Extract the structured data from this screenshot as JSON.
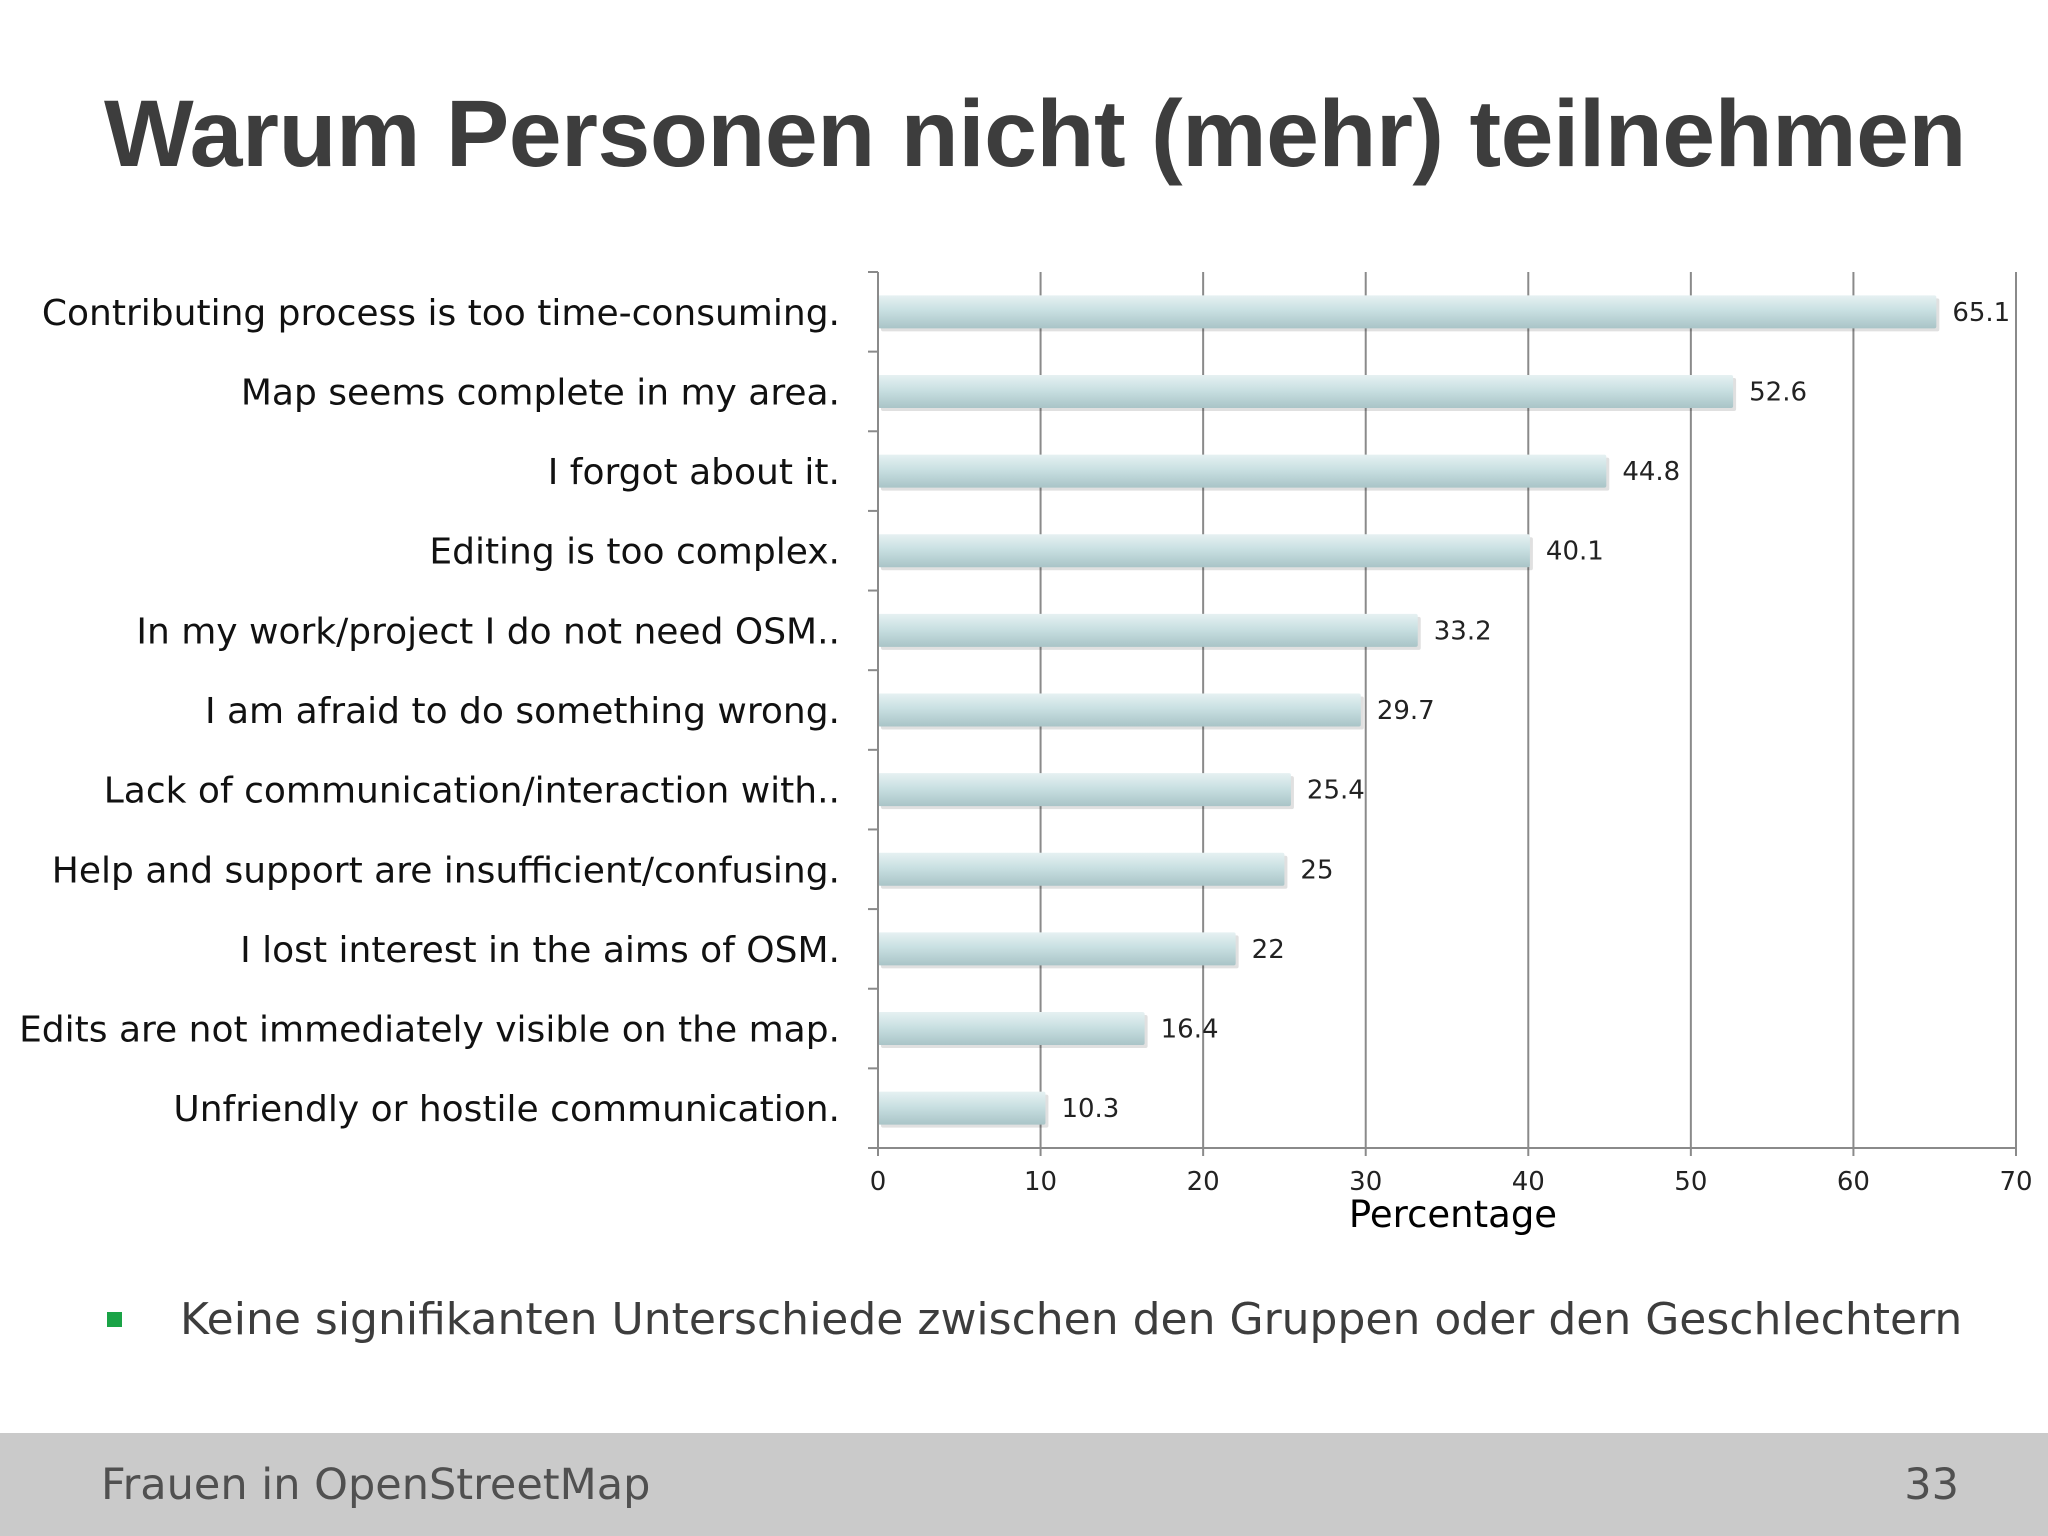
{
  "slide": {
    "title": "Warum Personen nicht (mehr) teilnehmen",
    "bullet": "Keine signifikanten Unterschiede zwischen den Gruppen oder den Geschlechtern",
    "bullet_color": "#1aa346"
  },
  "footer": {
    "title": "Frauen in OpenStreetMap",
    "page_number": "33",
    "background": "#cacaca"
  },
  "chart_data": {
    "type": "bar",
    "orientation": "horizontal",
    "categories": [
      "Contributing process is too time-consuming.",
      "Map seems complete in my area.",
      "I forgot about it.",
      "Editing is too complex.",
      "In my work/project I do not need OSM..",
      "I am afraid to do something wrong.",
      "Lack of communication/interaction with..",
      "Help and support are insufficient/confusing.",
      "I lost interest in the aims of OSM.",
      "Edits are not immediately visible on the map.",
      "Unfriendly or hostile communication."
    ],
    "values": [
      65.1,
      52.6,
      44.8,
      40.1,
      33.2,
      29.7,
      25.4,
      25,
      22,
      16.4,
      10.3
    ],
    "data_labels": [
      "65.1",
      "52.6",
      "44.8",
      "40.1",
      "33.2",
      "29.7",
      "25.4",
      "25",
      "22",
      "16.4",
      "10.3"
    ],
    "xlabel": "Percentage",
    "xlim": [
      0,
      70
    ],
    "xticks": [
      0,
      10,
      20,
      30,
      40,
      50,
      60,
      70
    ],
    "grid": "vertical",
    "legend": "none",
    "bar_color": "#c8e0e2"
  }
}
